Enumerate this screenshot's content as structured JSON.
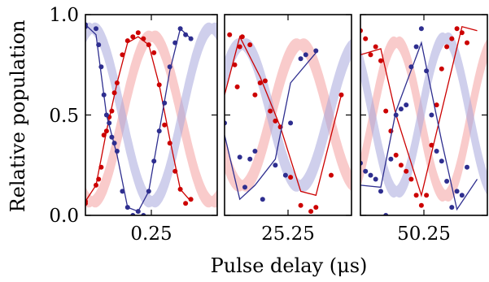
{
  "chart_data": {
    "type": "scatter",
    "xlabel": "Pulse delay (μs)",
    "ylabel": "Relative population",
    "ylim": [
      0,
      1
    ],
    "yticks": [
      "0.0",
      "0.5",
      "1.0"
    ],
    "colors": {
      "red": "#cc0000",
      "blue": "#2e2e8f",
      "red_band": "#f4a0a0",
      "blue_band": "#a8a8dc"
    },
    "panels": [
      {
        "xtick": "0.25",
        "xlim": [
          0.0,
          0.5
        ],
        "band_red": {
          "amp": 0.41,
          "freq_per_us": 2.2,
          "phase_us": 0.025,
          "mid": 0.48
        },
        "band_blue": {
          "amp": 0.43,
          "freq_per_us": 2.2,
          "phase_us": 0.025,
          "mid": 0.5
        },
        "series": [
          {
            "color": "red",
            "points": [
              [
                0.0,
                0.07
              ],
              [
                0.0,
                0.06
              ],
              [
                0.04,
                0.15
              ],
              [
                0.05,
                0.18
              ],
              [
                0.06,
                0.24
              ],
              [
                0.07,
                0.4
              ],
              [
                0.08,
                0.42
              ],
              [
                0.09,
                0.49
              ],
              [
                0.1,
                0.52
              ],
              [
                0.11,
                0.61
              ],
              [
                0.12,
                0.66
              ],
              [
                0.14,
                0.8
              ],
              [
                0.16,
                0.87
              ],
              [
                0.18,
                0.89
              ],
              [
                0.2,
                0.91
              ],
              [
                0.22,
                0.88
              ],
              [
                0.24,
                0.85
              ],
              [
                0.26,
                0.81
              ],
              [
                0.28,
                0.65
              ],
              [
                0.3,
                0.45
              ],
              [
                0.32,
                0.36
              ],
              [
                0.34,
                0.22
              ],
              [
                0.36,
                0.13
              ],
              [
                0.38,
                0.06
              ],
              [
                0.4,
                0.08
              ]
            ],
            "line": [
              [
                0.0,
                0.07
              ],
              [
                0.04,
                0.15
              ],
              [
                0.08,
                0.42
              ],
              [
                0.12,
                0.66
              ],
              [
                0.16,
                0.86
              ],
              [
                0.2,
                0.89
              ],
              [
                0.24,
                0.85
              ],
              [
                0.28,
                0.65
              ],
              [
                0.32,
                0.38
              ],
              [
                0.36,
                0.13
              ],
              [
                0.4,
                0.07
              ]
            ]
          },
          {
            "color": "blue",
            "points": [
              [
                0.0,
                0.94
              ],
              [
                0.0,
                0.95
              ],
              [
                0.04,
                0.93
              ],
              [
                0.05,
                0.85
              ],
              [
                0.06,
                0.74
              ],
              [
                0.07,
                0.6
              ],
              [
                0.08,
                0.5
              ],
              [
                0.09,
                0.46
              ],
              [
                0.1,
                0.39
              ],
              [
                0.11,
                0.36
              ],
              [
                0.12,
                0.32
              ],
              [
                0.14,
                0.12
              ],
              [
                0.16,
                0.04
              ],
              [
                0.18,
                0.0
              ],
              [
                0.2,
                0.02
              ],
              [
                0.22,
                0.0
              ],
              [
                0.24,
                0.12
              ],
              [
                0.26,
                0.27
              ],
              [
                0.28,
                0.42
              ],
              [
                0.3,
                0.56
              ],
              [
                0.32,
                0.74
              ],
              [
                0.34,
                0.86
              ],
              [
                0.36,
                0.93
              ],
              [
                0.38,
                0.9
              ],
              [
                0.4,
                0.88
              ]
            ],
            "line": [
              [
                0.0,
                0.95
              ],
              [
                0.04,
                0.9
              ],
              [
                0.08,
                0.5
              ],
              [
                0.12,
                0.3
              ],
              [
                0.16,
                0.04
              ],
              [
                0.2,
                0.02
              ],
              [
                0.24,
                0.12
              ],
              [
                0.28,
                0.42
              ],
              [
                0.32,
                0.72
              ],
              [
                0.36,
                0.93
              ],
              [
                0.4,
                0.88
              ]
            ]
          }
        ]
      },
      {
        "xtick": "25.25",
        "xlim": [
          25.0,
          25.5
        ],
        "band_red": {
          "amp": 0.35,
          "freq_per_us": 2.2,
          "phase_us": 25.07,
          "mid": 0.5
        },
        "band_blue": {
          "amp": 0.35,
          "freq_per_us": 2.2,
          "phase_us": 25.07,
          "mid": 0.5
        },
        "series": [
          {
            "color": "red",
            "points": [
              [
                25.02,
                0.9
              ],
              [
                25.04,
                0.75
              ],
              [
                25.05,
                0.64
              ],
              [
                25.06,
                0.84
              ],
              [
                25.07,
                0.89
              ],
              [
                25.1,
                0.85
              ],
              [
                25.12,
                0.6
              ],
              [
                25.14,
                0.66
              ],
              [
                25.16,
                0.67
              ],
              [
                25.18,
                0.52
              ],
              [
                25.2,
                0.47
              ],
              [
                25.22,
                0.44
              ],
              [
                25.26,
                0.19
              ],
              [
                25.3,
                0.05
              ],
              [
                25.34,
                0.02
              ],
              [
                25.36,
                0.04
              ],
              [
                25.42,
                0.2
              ],
              [
                25.46,
                0.6
              ]
            ],
            "line": [
              [
                25.0,
                0.6
              ],
              [
                25.06,
                0.89
              ],
              [
                25.14,
                0.69
              ],
              [
                25.22,
                0.44
              ],
              [
                25.3,
                0.12
              ],
              [
                25.36,
                0.1
              ],
              [
                25.46,
                0.6
              ]
            ]
          },
          {
            "color": "blue",
            "points": [
              [
                25.0,
                0.46
              ],
              [
                25.06,
                0.29
              ],
              [
                25.08,
                0.14
              ],
              [
                25.1,
                0.28
              ],
              [
                25.12,
                0.32
              ],
              [
                25.15,
                0.08
              ],
              [
                25.2,
                0.25
              ],
              [
                25.24,
                0.2
              ],
              [
                25.26,
                0.46
              ],
              [
                25.3,
                0.78
              ],
              [
                25.32,
                0.8
              ],
              [
                25.36,
                0.82
              ]
            ],
            "line": [
              [
                25.0,
                0.4
              ],
              [
                25.06,
                0.08
              ],
              [
                25.12,
                0.15
              ],
              [
                25.2,
                0.28
              ],
              [
                25.26,
                0.66
              ],
              [
                25.36,
                0.81
              ]
            ]
          }
        ]
      },
      {
        "xtick": "50.25",
        "xlim": [
          50.0,
          50.5
        ],
        "band_red": {
          "amp": 0.38,
          "freq_per_us": 2.6,
          "phase_us": 49.95,
          "mid": 0.48
        },
        "band_blue": {
          "amp": 0.38,
          "freq_per_us": 2.6,
          "phase_us": 49.95,
          "mid": 0.5
        },
        "series": [
          {
            "color": "red",
            "points": [
              [
                50.0,
                0.92
              ],
              [
                50.02,
                0.88
              ],
              [
                50.04,
                0.8
              ],
              [
                50.06,
                0.84
              ],
              [
                50.08,
                0.77
              ],
              [
                50.1,
                0.52
              ],
              [
                50.12,
                0.42
              ],
              [
                50.14,
                0.3
              ],
              [
                50.16,
                0.25
              ],
              [
                50.18,
                0.22
              ],
              [
                50.2,
                0.18
              ],
              [
                50.22,
                0.1
              ],
              [
                50.24,
                0.05
              ],
              [
                50.26,
                0.1
              ],
              [
                50.28,
                0.35
              ],
              [
                50.3,
                0.55
              ],
              [
                50.32,
                0.73
              ],
              [
                50.34,
                0.84
              ],
              [
                50.36,
                0.88
              ],
              [
                50.38,
                0.93
              ],
              [
                50.4,
                0.91
              ],
              [
                50.42,
                0.86
              ]
            ],
            "line": [
              [
                50.0,
                0.8
              ],
              [
                50.08,
                0.83
              ],
              [
                50.14,
                0.5
              ],
              [
                50.24,
                0.1
              ],
              [
                50.32,
                0.52
              ],
              [
                50.4,
                0.94
              ],
              [
                50.46,
                0.92
              ]
            ]
          },
          {
            "color": "blue",
            "points": [
              [
                50.0,
                0.26
              ],
              [
                50.02,
                0.22
              ],
              [
                50.04,
                0.2
              ],
              [
                50.06,
                0.18
              ],
              [
                50.08,
                0.12
              ],
              [
                50.1,
                0.0
              ],
              [
                50.12,
                0.28
              ],
              [
                50.14,
                0.5
              ],
              [
                50.16,
                0.53
              ],
              [
                50.18,
                0.55
              ],
              [
                50.2,
                0.74
              ],
              [
                50.22,
                0.84
              ],
              [
                50.24,
                0.93
              ],
              [
                50.26,
                0.72
              ],
              [
                50.28,
                0.5
              ],
              [
                50.3,
                0.32
              ],
              [
                50.32,
                0.27
              ],
              [
                50.34,
                0.17
              ],
              [
                50.36,
                0.04
              ],
              [
                50.38,
                0.12
              ],
              [
                50.4,
                0.1
              ],
              [
                50.42,
                0.24
              ]
            ],
            "line": [
              [
                50.0,
                0.15
              ],
              [
                50.08,
                0.14
              ],
              [
                50.14,
                0.52
              ],
              [
                50.24,
                0.86
              ],
              [
                50.32,
                0.37
              ],
              [
                50.38,
                0.03
              ],
              [
                50.46,
                0.18
              ]
            ]
          }
        ]
      }
    ]
  }
}
